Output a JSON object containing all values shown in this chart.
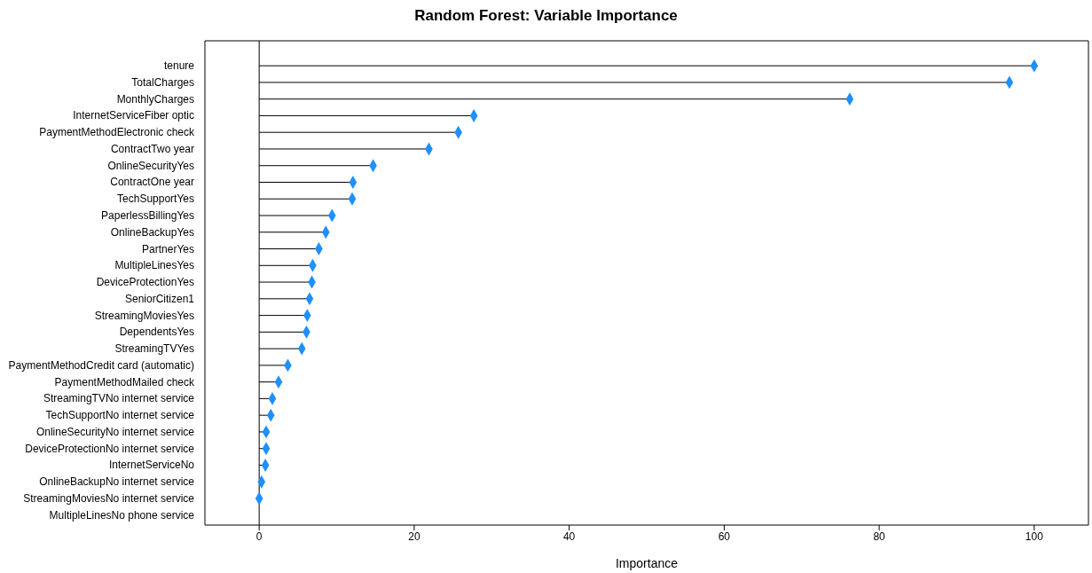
{
  "chart_data": {
    "type": "lollipop",
    "orientation": "horizontal",
    "title": "Random Forest: Variable Importance",
    "xlabel": "Importance",
    "categories": [
      "tenure",
      "TotalCharges",
      "MonthlyCharges",
      "InternetServiceFiber optic",
      "PaymentMethodElectronic check",
      "ContractTwo year",
      "OnlineSecurityYes",
      "ContractOne year",
      "TechSupportYes",
      "PaperlessBillingYes",
      "OnlineBackupYes",
      "PartnerYes",
      "MultipleLinesYes",
      "DeviceProtectionYes",
      "SeniorCitizen1",
      "StreamingMoviesYes",
      "DependentsYes",
      "StreamingTVYes",
      "PaymentMethodCredit card (automatic)",
      "PaymentMethodMailed check",
      "StreamingTVNo internet service",
      "TechSupportNo internet service",
      "OnlineSecurityNo internet service",
      "DeviceProtectionNo internet service",
      "InternetServiceNo",
      "OnlineBackupNo internet service",
      "StreamingMoviesNo internet service",
      "MultipleLinesNo phone service"
    ],
    "values": [
      100,
      96.8,
      76.2,
      27.7,
      25.7,
      21.9,
      14.7,
      12.1,
      12.0,
      9.4,
      8.6,
      7.7,
      6.9,
      6.8,
      6.5,
      6.2,
      6.1,
      5.5,
      3.7,
      2.5,
      1.7,
      1.5,
      0.9,
      0.9,
      0.8,
      0.3,
      0.0,
      null
    ],
    "color": "#1e90ff",
    "marker": "diamond",
    "xlim": [
      -7,
      107
    ],
    "xticks": [
      0,
      20,
      40,
      60,
      80,
      100
    ],
    "ref_lines": [
      {
        "axis": "x",
        "value": 0,
        "color": "#000000"
      }
    ]
  }
}
